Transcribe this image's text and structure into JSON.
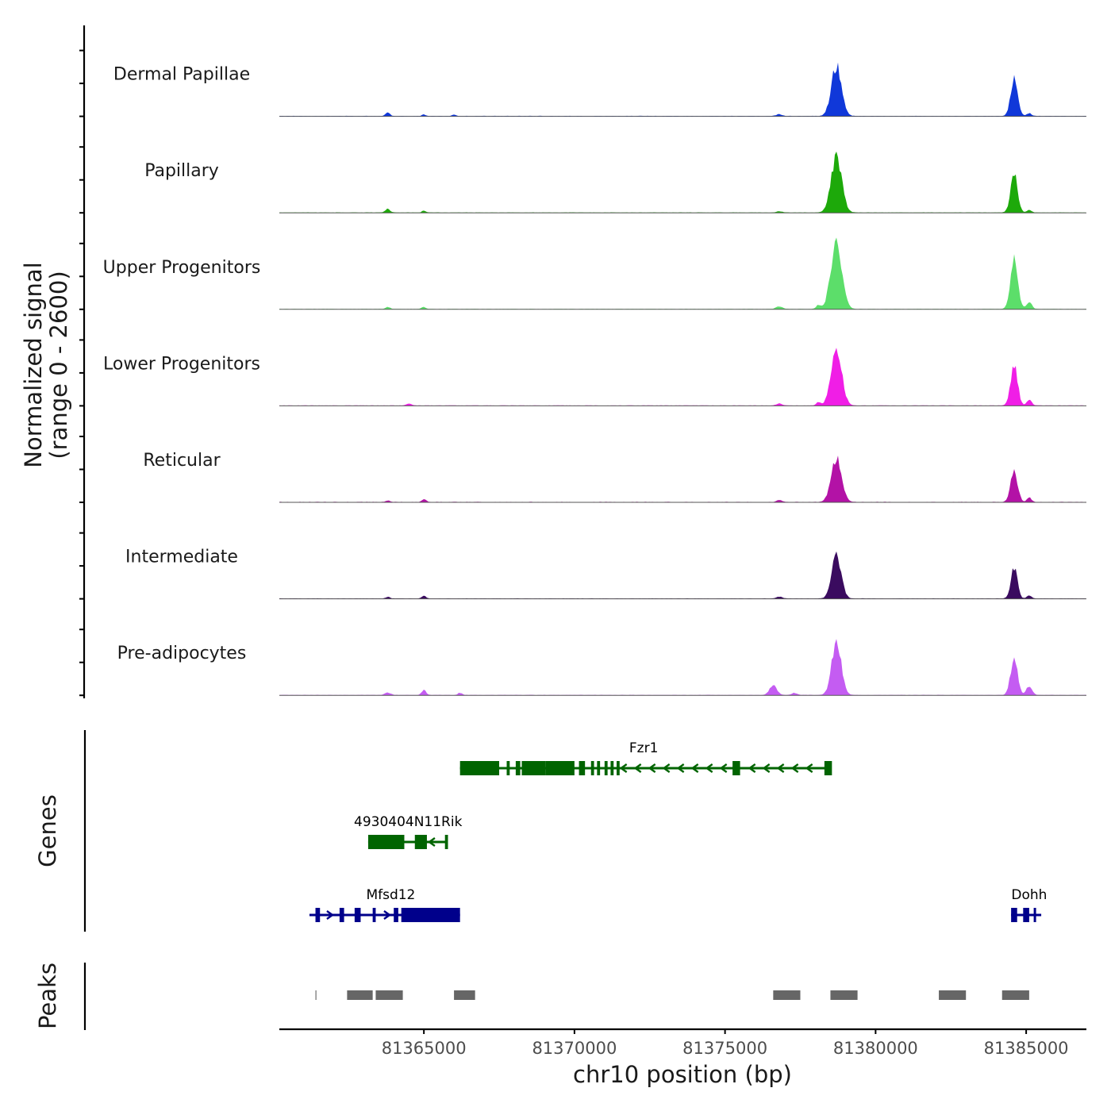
{
  "chart_data": {
    "type": "area",
    "title": "",
    "chromosome": "chr10",
    "xlabel": "chr10 position (bp)",
    "ylabel_line1": "Normalized signal",
    "ylabel_line2": "(range 0 - 2600)",
    "ylim": [
      0,
      2600
    ],
    "xlim": [
      81360200,
      81387000
    ],
    "x_ticks": [
      81365000,
      81370000,
      81375000,
      81380000,
      81385000
    ],
    "x_tick_labels": [
      "81365000",
      "81370000",
      "81375000",
      "81380000",
      "81385000"
    ],
    "series": [
      {
        "name": "Dermal Papillae",
        "color": "#1038D9",
        "peaks": [
          {
            "center": 81378700,
            "height": 2050,
            "width": 350
          },
          {
            "center": 81384600,
            "height": 1500,
            "width": 240
          },
          {
            "center": 81363800,
            "height": 160,
            "width": 150
          },
          {
            "center": 81365000,
            "height": 70,
            "width": 120
          },
          {
            "center": 81366000,
            "height": 60,
            "width": 120
          },
          {
            "center": 81376800,
            "height": 70,
            "width": 200
          },
          {
            "center": 81385100,
            "height": 120,
            "width": 150
          }
        ]
      },
      {
        "name": "Papillary",
        "color": "#1DA90A",
        "peaks": [
          {
            "center": 81378700,
            "height": 2250,
            "width": 370
          },
          {
            "center": 81384600,
            "height": 1550,
            "width": 240
          },
          {
            "center": 81363800,
            "height": 160,
            "width": 150
          },
          {
            "center": 81365000,
            "height": 80,
            "width": 120
          },
          {
            "center": 81376800,
            "height": 50,
            "width": 200
          },
          {
            "center": 81385100,
            "height": 120,
            "width": 150
          }
        ]
      },
      {
        "name": "Upper Progenitors",
        "color": "#5CDE6A",
        "peaks": [
          {
            "center": 81378700,
            "height": 2800,
            "width": 380
          },
          {
            "center": 81384600,
            "height": 2080,
            "width": 250
          },
          {
            "center": 81363800,
            "height": 90,
            "width": 150
          },
          {
            "center": 81365000,
            "height": 80,
            "width": 150
          },
          {
            "center": 81376800,
            "height": 110,
            "width": 220
          },
          {
            "center": 81378100,
            "height": 170,
            "width": 150
          },
          {
            "center": 81385100,
            "height": 300,
            "width": 180
          }
        ]
      },
      {
        "name": "Lower Progenitors",
        "color": "#F01EE6",
        "peaks": [
          {
            "center": 81378700,
            "height": 2400,
            "width": 360
          },
          {
            "center": 81384600,
            "height": 1650,
            "width": 240
          },
          {
            "center": 81364500,
            "height": 70,
            "width": 200
          },
          {
            "center": 81376800,
            "height": 80,
            "width": 200
          },
          {
            "center": 81378100,
            "height": 140,
            "width": 150
          },
          {
            "center": 81385100,
            "height": 240,
            "width": 170
          }
        ]
      },
      {
        "name": "Reticular",
        "color": "#B312A6",
        "peaks": [
          {
            "center": 81378700,
            "height": 1800,
            "width": 360
          },
          {
            "center": 81384600,
            "height": 1300,
            "width": 240
          },
          {
            "center": 81363800,
            "height": 70,
            "width": 150
          },
          {
            "center": 81365000,
            "height": 120,
            "width": 150
          },
          {
            "center": 81376800,
            "height": 80,
            "width": 200
          },
          {
            "center": 81385100,
            "height": 190,
            "width": 160
          }
        ]
      },
      {
        "name": "Intermediate",
        "color": "#3A0B5F",
        "peaks": [
          {
            "center": 81378700,
            "height": 1700,
            "width": 330
          },
          {
            "center": 81384600,
            "height": 1300,
            "width": 220
          },
          {
            "center": 81363800,
            "height": 70,
            "width": 150
          },
          {
            "center": 81365000,
            "height": 120,
            "width": 150
          },
          {
            "center": 81376800,
            "height": 80,
            "width": 200
          },
          {
            "center": 81385100,
            "height": 140,
            "width": 150
          }
        ]
      },
      {
        "name": "Pre-adipocytes",
        "color": "#C45CF2",
        "peaks": [
          {
            "center": 81378700,
            "height": 2150,
            "width": 330
          },
          {
            "center": 81384600,
            "height": 1550,
            "width": 240
          },
          {
            "center": 81376600,
            "height": 380,
            "width": 250
          },
          {
            "center": 81385100,
            "height": 360,
            "width": 200
          },
          {
            "center": 81363800,
            "height": 100,
            "width": 200
          },
          {
            "center": 81365000,
            "height": 200,
            "width": 150
          },
          {
            "center": 81366200,
            "height": 90,
            "width": 150
          },
          {
            "center": 81377300,
            "height": 80,
            "width": 200
          }
        ]
      }
    ],
    "genes": [
      {
        "name": "Fzr1",
        "strand": "-",
        "color": "#006400",
        "start": 81366200,
        "end": 81378500,
        "exons": [
          [
            81366200,
            81367500
          ],
          [
            81367750,
            81367850
          ],
          [
            81368050,
            81368200
          ],
          [
            81368250,
            81369050
          ],
          [
            81369050,
            81370000
          ],
          [
            81370150,
            81370350
          ],
          [
            81370550,
            81370650
          ],
          [
            81370750,
            81370850
          ],
          [
            81371000,
            81371100
          ],
          [
            81371200,
            81371300
          ],
          [
            81371400,
            81371500
          ],
          [
            81375250,
            81375500
          ],
          [
            81378300,
            81378550
          ]
        ]
      },
      {
        "name": "4930404N11Rik",
        "strand": "-",
        "color": "#006400",
        "start": 81363150,
        "end": 81365800,
        "exons": [
          [
            81363150,
            81364350
          ],
          [
            81364700,
            81365100
          ],
          [
            81365700,
            81365800
          ]
        ]
      },
      {
        "name": "Mfsd12",
        "strand": "+",
        "color": "#00008B",
        "start": 81361200,
        "end": 81366200,
        "exons": [
          [
            81361400,
            81361550
          ],
          [
            81362200,
            81362350
          ],
          [
            81362700,
            81362900
          ],
          [
            81363300,
            81363400
          ],
          [
            81364000,
            81364150
          ],
          [
            81364250,
            81366200
          ]
        ]
      },
      {
        "name": "Dohh",
        "strand": "+",
        "color": "#00008B",
        "start": 81384500,
        "end": 81385500,
        "exons": [
          [
            81384500,
            81384700
          ],
          [
            81384900,
            81385100
          ],
          [
            81385250,
            81385300
          ]
        ]
      }
    ],
    "peaks_track": {
      "color": "#666666",
      "regions": [
        [
          81361400,
          81361430
        ],
        [
          81362450,
          81363300
        ],
        [
          81363400,
          81364300
        ],
        [
          81366000,
          81366700
        ],
        [
          81376600,
          81377500
        ],
        [
          81378500,
          81379400
        ],
        [
          81382100,
          81383000
        ],
        [
          81384200,
          81385100
        ]
      ]
    },
    "track_labels": {
      "genes": "Genes",
      "peaks": "Peaks"
    }
  }
}
